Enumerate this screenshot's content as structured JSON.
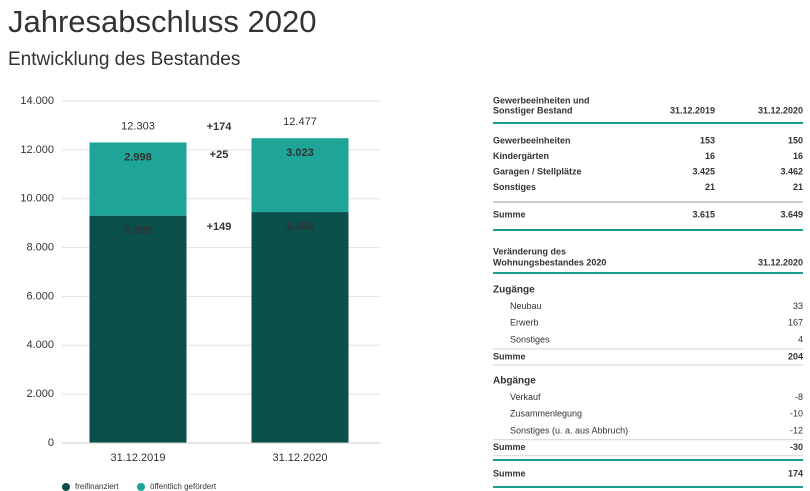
{
  "header": {
    "title": "Jahresabschluss 2020",
    "subtitle": "Entwicklung des Bestandes"
  },
  "chart_data": {
    "type": "stacked_bar",
    "categories": [
      "31.12.2019",
      "31.12.2020"
    ],
    "series": [
      {
        "name": "freifinanziert",
        "color": "#0b4f4a",
        "values": [
          9305,
          9454
        ],
        "value_labels": [
          "9.305",
          "9.454"
        ]
      },
      {
        "name": "öffentlich gefördert",
        "color": "#1fa498",
        "values": [
          2998,
          3023
        ],
        "value_labels": [
          "2.998",
          "3.023"
        ]
      }
    ],
    "totals": {
      "values": [
        12303,
        12477
      ],
      "value_labels": [
        "12.303",
        "12.477"
      ]
    },
    "annotations": [
      "+174",
      "+25",
      "+149"
    ],
    "ylim": [
      0,
      14000
    ],
    "yticks": [
      0,
      {
        "value": 2000,
        "label": "2.000"
      },
      {
        "value": 4000,
        "label": "4.000"
      },
      {
        "value": 6000,
        "label": "6.000"
      },
      {
        "value": 8000,
        "label": "8.000"
      },
      {
        "value": 10000,
        "label": "10.000"
      },
      {
        "value": 12000,
        "label": "12.000"
      },
      {
        "value": 14000,
        "label": "14.000"
      }
    ],
    "grid": true
  },
  "table1": {
    "header": [
      "Gewerbeeinheiten und",
      "Sonstiger Bestand",
      "31.12.2019",
      "31.12.2020"
    ],
    "rows": [
      [
        "Gewerbeeinheiten",
        "153",
        "150"
      ],
      [
        "Kindergärten",
        "16",
        "16"
      ],
      [
        "Garagen / Stellplätze",
        "3.425",
        "3.462"
      ],
      [
        "Sonstiges",
        "21",
        "21"
      ]
    ],
    "sum": [
      "Summe",
      "3.615",
      "3.649"
    ]
  },
  "table2": {
    "header": [
      "Veränderung des",
      "Wohnungsbestandes 2020",
      "31.12.2020"
    ],
    "sections": [
      {
        "title": "Zugänge",
        "rows": [
          [
            "Neubau",
            "33"
          ],
          [
            "Erwerb",
            "167"
          ],
          [
            "Sonstiges",
            "4"
          ]
        ],
        "sum": [
          "Summe",
          "204"
        ]
      },
      {
        "title": "Abgänge",
        "rows": [
          [
            "Verkauf",
            "-8"
          ],
          [
            "Zusammenlegung",
            "-10"
          ],
          [
            "Sonstiges (u. a. aus Abbruch)",
            "-12"
          ]
        ],
        "sum": [
          "Summe",
          "-30"
        ]
      }
    ],
    "total": [
      "Summe",
      "174"
    ]
  }
}
